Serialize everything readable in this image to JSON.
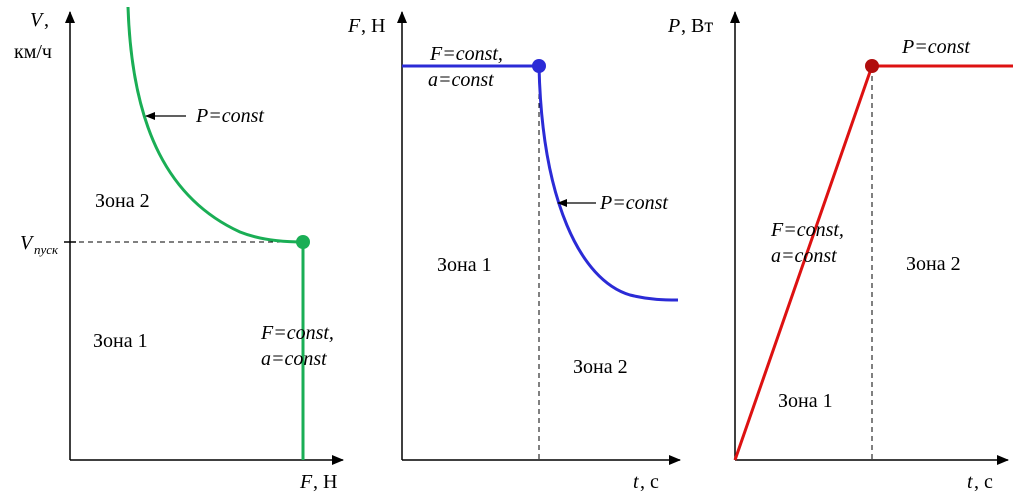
{
  "charts": [
    {
      "x_axis": {
        "var": "F",
        "unit": ", Н"
      },
      "y_axis": {
        "var": "V",
        "unit_line1": ",",
        "unit_line2": "км/ч"
      },
      "tick_label": {
        "main": "V",
        "sub": "пуск"
      },
      "annotations": {
        "power": "P=const",
        "force": "F=const,",
        "accel": "a=const",
        "zone2": "Зона 2",
        "zone1": "Зона 1"
      },
      "color": "#1aae55"
    },
    {
      "x_axis": {
        "var": "t",
        "unit": ", с"
      },
      "y_axis": {
        "var": "F",
        "unit": ", Н"
      },
      "annotations": {
        "force": "F=const,",
        "accel": "a=const",
        "power": "P=const",
        "zone1": "Зона 1",
        "zone2": "Зона 2"
      },
      "color": "#2b2bd6"
    },
    {
      "x_axis": {
        "var": "t",
        "unit": ", с"
      },
      "y_axis": {
        "var": "P",
        "unit": ", Вт"
      },
      "annotations": {
        "power": "P=const",
        "force": "F=const,",
        "accel": "a=const",
        "zone2": "Зона 2",
        "zone1": "Зона 1"
      },
      "color": "#dd1111"
    }
  ],
  "chart_data": [
    {
      "type": "line",
      "description_free": true,
      "x_label": "F, Н",
      "y_label": "V, км/ч",
      "y_ticks": [
        "Vпуск"
      ],
      "series": [
        {
          "x": [
            0.85,
            0.75,
            0.62,
            0.5,
            0.4,
            0.3,
            0.22
          ],
          "y": [
            0.92,
            0.93,
            0.96,
            1.02,
            1.16,
            1.42,
            2.0
          ]
        },
        {
          "x": [
            1.0,
            1.0
          ],
          "y": [
            0.0,
            1.0
          ]
        }
      ],
      "markers": [
        {
          "x": 1.0,
          "y": 1.0
        }
      ],
      "legend": "none",
      "grid": false
    },
    {
      "type": "line",
      "x_label": "t, с",
      "y_label": "F, Н",
      "series": [
        {
          "x": [
            0.0,
            1.0
          ],
          "y": [
            1.0,
            1.0
          ]
        },
        {
          "x": [
            1.0,
            1.1,
            1.3,
            1.6,
            2.0,
            2.4,
            2.6
          ],
          "y": [
            1.0,
            0.8,
            0.62,
            0.46,
            0.32,
            0.25,
            0.24
          ]
        }
      ],
      "markers": [
        {
          "x": 1.0,
          "y": 1.0
        }
      ],
      "legend": "none",
      "grid": false
    },
    {
      "type": "line",
      "x_label": "t, с",
      "y_label": "P, Вт",
      "series": [
        {
          "x": [
            0.0,
            1.0
          ],
          "y": [
            0.0,
            1.0
          ]
        },
        {
          "x": [
            1.0,
            2.0
          ],
          "y": [
            1.0,
            1.0
          ]
        }
      ],
      "markers": [
        {
          "x": 1.0,
          "y": 1.0
        }
      ],
      "legend": "none",
      "grid": false
    }
  ]
}
